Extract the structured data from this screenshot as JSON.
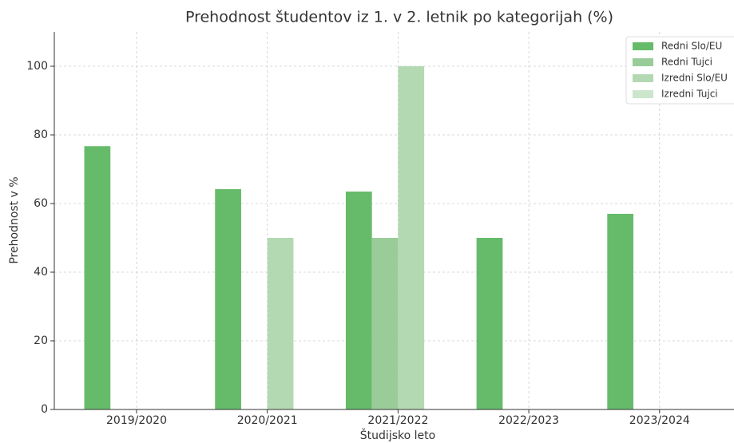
{
  "chart_data": {
    "type": "bar",
    "title": "Prehodnost študentov iz 1. v 2. letnik po kategorijah (%)",
    "x_label": "Študijsko leto",
    "y_label": "Prehodnost v %",
    "categories": [
      "2019/2020",
      "2020/2021",
      "2021/2022",
      "2022/2023",
      "2023/2024"
    ],
    "series": [
      {
        "name": "Redni Slo/EU",
        "color": "#66bb6a",
        "values": [
          76.7,
          64.2,
          63.5,
          50,
          57
        ]
      },
      {
        "name": "Redni Tujci",
        "color": "#99cc99",
        "values": [
          null,
          null,
          50,
          null,
          null
        ]
      },
      {
        "name": "Izredni Slo/EU",
        "color": "#b3d9b3",
        "values": [
          null,
          50,
          100,
          null,
          null
        ]
      },
      {
        "name": "Izredni Tujci",
        "color": "#cce6cc",
        "values": [
          null,
          null,
          null,
          null,
          null
        ]
      }
    ],
    "ylim": [
      0,
      110
    ],
    "yticks": [
      0,
      20,
      40,
      60,
      80,
      100
    ],
    "grid": true,
    "legend": "upper right"
  }
}
